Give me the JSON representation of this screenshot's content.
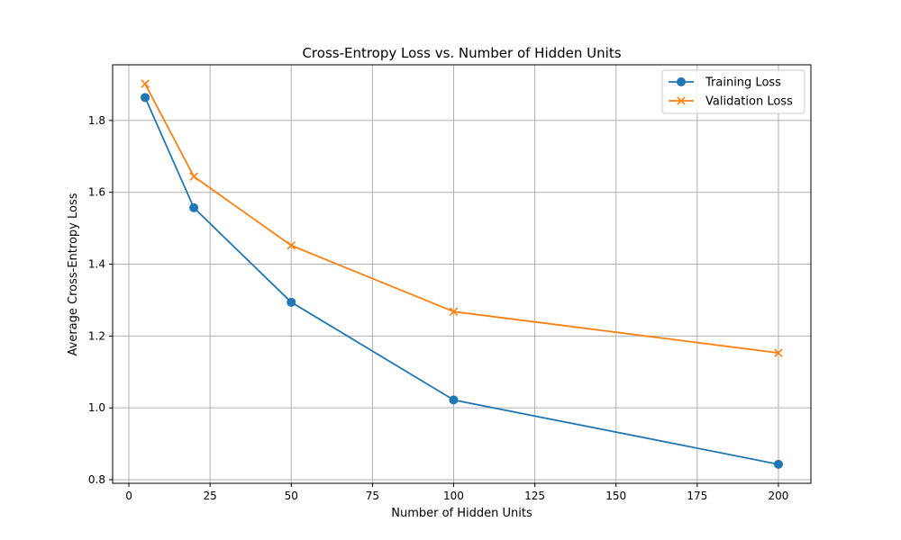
{
  "chart_data": {
    "type": "line",
    "title": "Cross-Entropy Loss vs. Number of Hidden Units",
    "xlabel": "Number of Hidden Units",
    "ylabel": "Average Cross-Entropy Loss",
    "xlim": [
      -5,
      210
    ],
    "ylim": [
      0.79,
      1.955
    ],
    "xticks": [
      0,
      25,
      50,
      75,
      100,
      125,
      150,
      175,
      200
    ],
    "yticks": [
      0.8,
      1.0,
      1.2,
      1.4,
      1.6,
      1.8
    ],
    "ytick_labels": [
      "0.8",
      "1.0",
      "1.2",
      "1.4",
      "1.6",
      "1.8"
    ],
    "grid": true,
    "legend_position": "upper right",
    "x": [
      5,
      20,
      50,
      100,
      200
    ],
    "series": [
      {
        "name": "Training Loss",
        "values": [
          1.864,
          1.557,
          1.294,
          1.022,
          0.843
        ],
        "color": "#1f77b4",
        "marker": "circle"
      },
      {
        "name": "Validation Loss",
        "values": [
          1.902,
          1.644,
          1.452,
          1.268,
          1.153
        ],
        "color": "#ff7f0e",
        "marker": "x"
      }
    ]
  }
}
